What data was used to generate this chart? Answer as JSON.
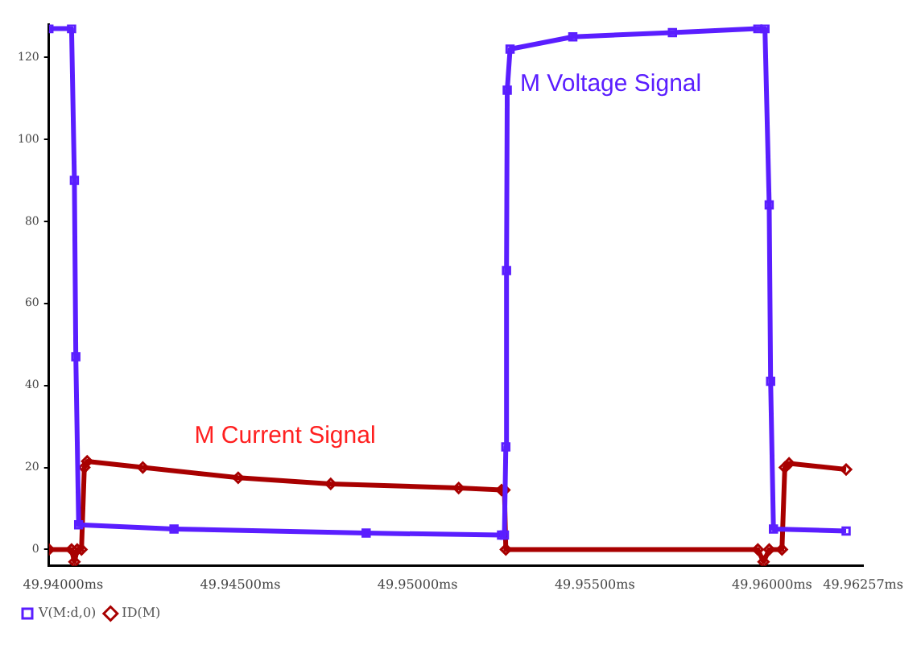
{
  "chart_data": {
    "type": "line",
    "xlim": [
      49.9396,
      49.96257
    ],
    "ylim": [
      -4,
      128
    ],
    "xticks": [
      {
        "value": 49.94,
        "label": "49.94000ms"
      },
      {
        "value": 49.945,
        "label": "49.94500ms"
      },
      {
        "value": 49.95,
        "label": "49.95000ms"
      },
      {
        "value": 49.955,
        "label": "49.95500ms"
      },
      {
        "value": 49.96,
        "label": "49.96000ms"
      },
      {
        "value": 49.96257,
        "label": "49.96257ms"
      }
    ],
    "yticks": [
      0,
      20,
      40,
      60,
      80,
      100,
      120
    ],
    "grid": false,
    "legend": "bottom left",
    "line_style": "solid",
    "annotations": [
      "M Voltage Signal",
      "M Current Signal"
    ],
    "series": [
      {
        "name": "V(M:d,0)",
        "color": "#5a1eff",
        "marker": "square",
        "x": [
          49.9396,
          49.94024,
          49.94032,
          49.94036,
          49.94044,
          49.94313,
          49.94855,
          49.95237,
          49.95245,
          49.95249,
          49.95251,
          49.95253,
          49.95261,
          49.95438,
          49.95719,
          49.9596,
          49.9598,
          49.95992,
          49.95996,
          49.96004,
          49.96209
        ],
        "values": [
          127,
          127,
          90,
          47,
          6,
          5,
          4,
          3.5,
          3.5,
          25,
          68,
          112,
          122,
          125,
          126,
          127,
          127,
          84,
          41,
          5,
          4.5
        ]
      },
      {
        "name": "ID(M)",
        "color": "#a80000",
        "marker": "diamond",
        "x": [
          49.9396,
          49.94024,
          49.94032,
          49.9404,
          49.94052,
          49.9406,
          49.94068,
          49.94225,
          49.94494,
          49.94755,
          49.95116,
          49.95237,
          49.95245,
          49.95249,
          49.9596,
          49.95976,
          49.95992,
          49.96028,
          49.96036,
          49.96048,
          49.96209
        ],
        "values": [
          0,
          0,
          -3,
          0,
          0,
          20,
          21.5,
          20,
          17.5,
          16,
          15,
          14.5,
          14.5,
          0,
          0,
          -3,
          0,
          0,
          20,
          21,
          19.5
        ]
      }
    ]
  }
}
